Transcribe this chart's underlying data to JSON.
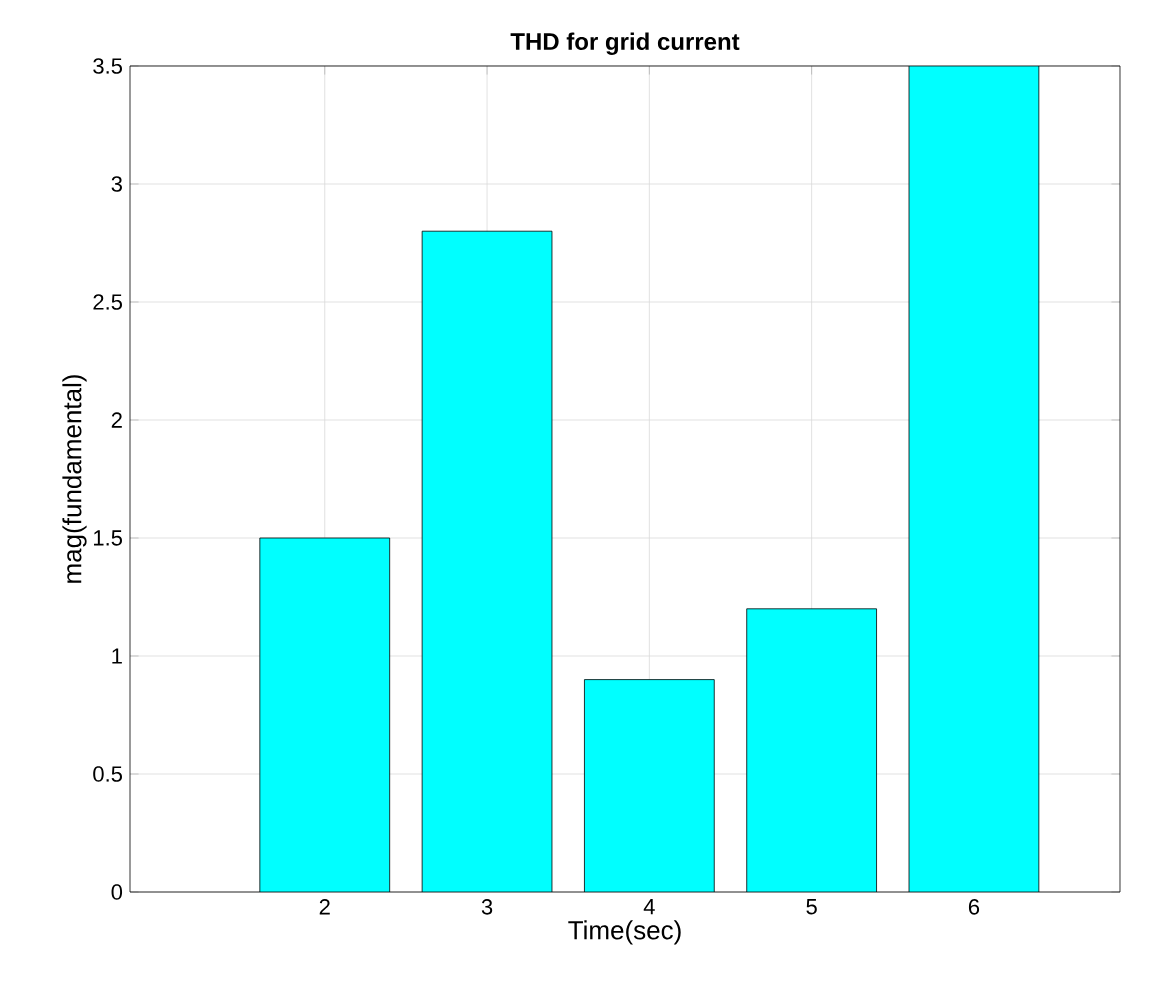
{
  "chart_data": {
    "type": "bar",
    "title": "THD for grid current",
    "xlabel": "Time(sec)",
    "ylabel": "mag(fundamental)",
    "x": [
      2,
      3,
      4,
      5,
      6
    ],
    "values": [
      1.5,
      2.8,
      0.9,
      1.2,
      3.5
    ],
    "color": "#00ffff",
    "xlim": [
      0.8,
      6.9
    ],
    "ylim": [
      0,
      3.5
    ],
    "xticks": [
      2,
      3,
      4,
      5,
      6
    ],
    "yticks": [
      0,
      0.5,
      1,
      1.5,
      2,
      2.5,
      3,
      3.5
    ],
    "grid": true
  }
}
